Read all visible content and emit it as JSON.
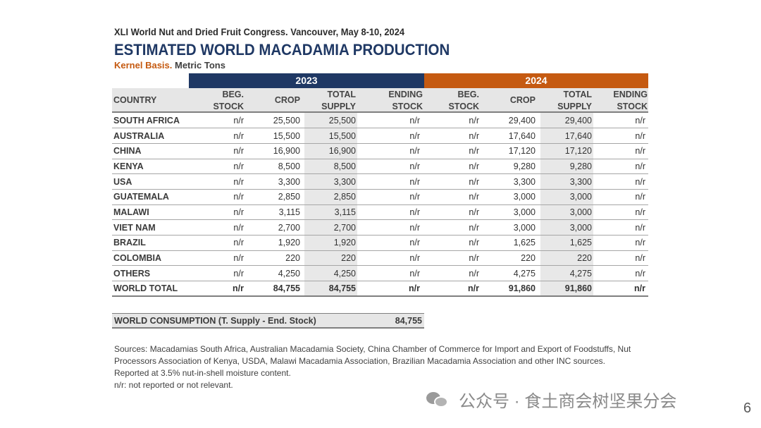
{
  "header": {
    "subtitle": "XLI World Nut and Dried Fruit Congress. Vancouver, May 8-10, 2024",
    "title": "ESTIMATED WORLD MACADAMIA PRODUCTION",
    "basis_label": "Kernel Basis.",
    "unit_label": " Metric Tons"
  },
  "years": {
    "y2023": "2023",
    "y2024": "2024"
  },
  "columns": {
    "country": "COUNTRY",
    "beg_stock": [
      "BEG.",
      "STOCK"
    ],
    "crop": "CROP",
    "total_supply": [
      "TOTAL",
      "SUPPLY"
    ],
    "ending_stock": [
      "ENDING",
      "STOCK"
    ]
  },
  "rows": [
    {
      "country": "SOUTH AFRICA",
      "v": [
        "n/r",
        "25,500",
        "25,500",
        "n/r",
        "n/r",
        "29,400",
        "29,400",
        "n/r"
      ]
    },
    {
      "country": "AUSTRALIA",
      "v": [
        "n/r",
        "15,500",
        "15,500",
        "n/r",
        "n/r",
        "17,640",
        "17,640",
        "n/r"
      ]
    },
    {
      "country": "CHINA",
      "v": [
        "n/r",
        "16,900",
        "16,900",
        "n/r",
        "n/r",
        "17,120",
        "17,120",
        "n/r"
      ]
    },
    {
      "country": "KENYA",
      "v": [
        "n/r",
        "8,500",
        "8,500",
        "n/r",
        "n/r",
        "9,280",
        "9,280",
        "n/r"
      ]
    },
    {
      "country": "USA",
      "v": [
        "n/r",
        "3,300",
        "3,300",
        "n/r",
        "n/r",
        "3,300",
        "3,300",
        "n/r"
      ]
    },
    {
      "country": "GUATEMALA",
      "v": [
        "n/r",
        "2,850",
        "2,850",
        "n/r",
        "n/r",
        "3,000",
        "3,000",
        "n/r"
      ]
    },
    {
      "country": "MALAWI",
      "v": [
        "n/r",
        "3,115",
        "3,115",
        "n/r",
        "n/r",
        "3,000",
        "3,000",
        "n/r"
      ]
    },
    {
      "country": "VIET NAM",
      "v": [
        "n/r",
        "2,700",
        "2,700",
        "n/r",
        "n/r",
        "3,000",
        "3,000",
        "n/r"
      ]
    },
    {
      "country": "BRAZIL",
      "v": [
        "n/r",
        "1,920",
        "1,920",
        "n/r",
        "n/r",
        "1,625",
        "1,625",
        "n/r"
      ]
    },
    {
      "country": "COLOMBIA",
      "v": [
        "n/r",
        "220",
        "220",
        "n/r",
        "n/r",
        "220",
        "220",
        "n/r"
      ]
    },
    {
      "country": "OTHERS",
      "v": [
        "n/r",
        "4,250",
        "4,250",
        "n/r",
        "n/r",
        "4,275",
        "4,275",
        "n/r"
      ]
    }
  ],
  "total": {
    "country": "WORLD TOTAL",
    "v": [
      "n/r",
      "84,755",
      "84,755",
      "n/r",
      "n/r",
      "91,860",
      "91,860",
      "n/r"
    ]
  },
  "consumption": {
    "label": "WORLD CONSUMPTION (T. Supply - End. Stock)",
    "value": "84,755"
  },
  "sources": [
    "Sources: Macadamias South Africa, Australian Macadamia Society, China Chamber of Commerce for Import and Export of Foodstuffs, Nut Processors Association of Kenya, USDA, Malawi Macadamia Association, Brazilian Macadamia Association and other INC sources.",
    "Reported at 3.5% nut-in-shell moisture content.",
    "n/r: not reported or not relevant."
  ],
  "watermark": {
    "text": "公众号 · 食土商会树坚果分会",
    "icon": "wechat-icon"
  },
  "page_number": "6",
  "colors": {
    "navy": "#1f3864",
    "orange": "#c55a11",
    "header_gray": "#e6e6e6"
  }
}
